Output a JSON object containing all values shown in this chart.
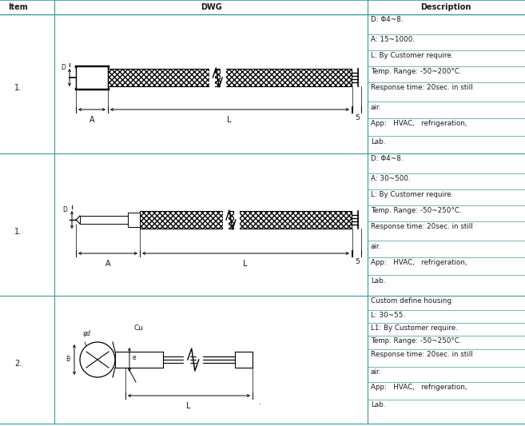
{
  "fig_width": 6.57,
  "fig_height": 5.33,
  "bg_color": "#ffffff",
  "teal_color": "#3a9a9a",
  "dark": "#1a1a1a",
  "header": {
    "item": "Item",
    "dwg": "DWG",
    "desc": "Description"
  },
  "row1_desc": [
    "D: Φ4~8.",
    "A: 15~1000.",
    "L: By Customer require.",
    "Temp. Range: -50~200°C.",
    "Response time: 20sec. in still",
    "air.",
    "App:   HVAC,   refrigeration,",
    "Lab."
  ],
  "row2_desc": [
    "D: Φ4~8.",
    "A: 30~500.",
    "L: By Customer require.",
    "Temp. Range: -50~250°C.",
    "Response time: 20sec. in still",
    "air.",
    "App:   HVAC,   refrigeration,",
    "Lab."
  ],
  "row3_desc": [
    "Custom define housing.",
    "L: 30~55.",
    "L1: By Customer require.",
    "Temp. Range: -50~250°C.",
    "Response time: 20sec. in still",
    "air.",
    "App:   HVAC,   refrigeration,",
    "Lab."
  ]
}
